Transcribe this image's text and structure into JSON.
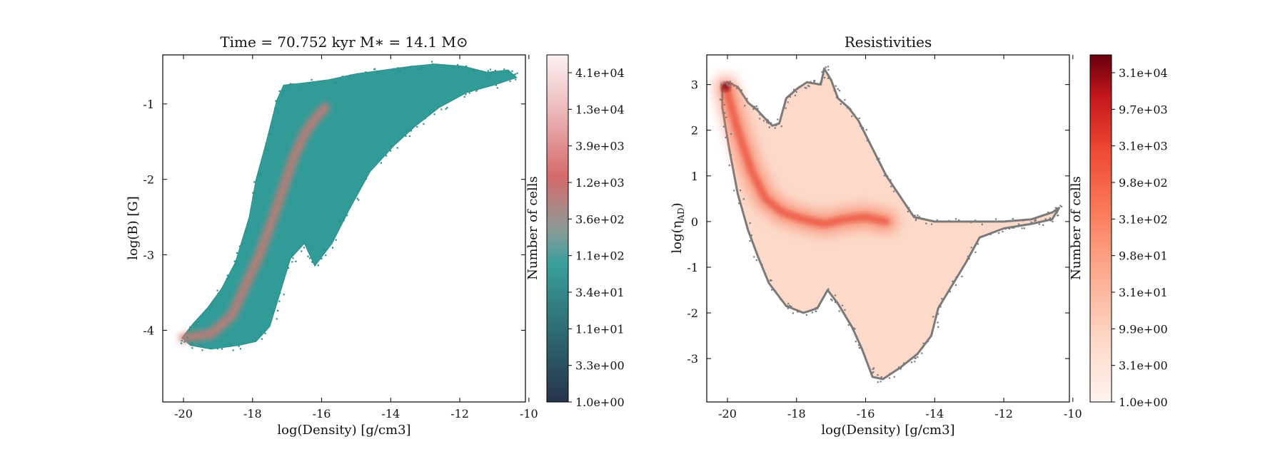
{
  "chart_data": [
    {
      "type": "heatmap",
      "title": "Time = 70.752 kyr    M$_*$ = 14.1 M$_\\odot$",
      "title_display": "Time = 70.752 kyr    M∗ = 14.1 M⊙",
      "xlabel": "log(Density) [g/cm3]",
      "ylabel": "log(B) [G]",
      "xlim": [
        -20.6,
        -10.1
      ],
      "ylim": [
        -4.95,
        -0.35
      ],
      "xticks": [
        -20,
        -18,
        -16,
        -14,
        -12,
        -10
      ],
      "yticks": [
        -4,
        -3,
        -2,
        -1
      ],
      "xtick_labels": [
        "-20",
        "-18",
        "-16",
        "-14",
        "-12",
        "-10"
      ],
      "ytick_labels": [
        "-4",
        "-3",
        "-2",
        "-1"
      ],
      "colormap": [
        "#2a3a52",
        "#2e8f8c",
        "#3aa3a0",
        "#8f9a96",
        "#d86868",
        "#f0bfc0",
        "#fbeff0"
      ],
      "colorbar": {
        "label": "Number of cells",
        "scale": "log",
        "ticks": [
          "1.0e+00",
          "3.3e+00",
          "1.1e+01",
          "3.4e+01",
          "1.1e+02",
          "3.6e+02",
          "1.2e+03",
          "3.9e+03",
          "1.3e+04",
          "4.1e+04"
        ]
      },
      "region": [
        [
          -20.05,
          -4.1
        ],
        [
          -19.7,
          -3.9
        ],
        [
          -19.3,
          -3.7
        ],
        [
          -18.9,
          -3.45
        ],
        [
          -18.5,
          -3.1
        ],
        [
          -18.1,
          -2.5
        ],
        [
          -17.9,
          -2.0
        ],
        [
          -17.6,
          -1.5
        ],
        [
          -17.3,
          -0.95
        ],
        [
          -17.1,
          -0.75
        ],
        [
          -16.5,
          -0.72
        ],
        [
          -15.8,
          -0.68
        ],
        [
          -15.0,
          -0.6
        ],
        [
          -14.2,
          -0.55
        ],
        [
          -13.4,
          -0.5
        ],
        [
          -12.7,
          -0.47
        ],
        [
          -11.9,
          -0.5
        ],
        [
          -11.2,
          -0.58
        ],
        [
          -10.6,
          -0.55
        ],
        [
          -10.35,
          -0.65
        ],
        [
          -11.0,
          -0.75
        ],
        [
          -11.8,
          -0.85
        ],
        [
          -12.6,
          -1.05
        ],
        [
          -13.3,
          -1.3
        ],
        [
          -13.9,
          -1.55
        ],
        [
          -14.6,
          -1.9
        ],
        [
          -15.2,
          -2.4
        ],
        [
          -15.7,
          -2.85
        ],
        [
          -16.2,
          -3.15
        ],
        [
          -16.5,
          -2.85
        ],
        [
          -16.9,
          -3.05
        ],
        [
          -17.2,
          -3.5
        ],
        [
          -17.5,
          -3.95
        ],
        [
          -17.9,
          -4.15
        ],
        [
          -18.4,
          -4.2
        ],
        [
          -19.2,
          -4.25
        ],
        [
          -19.8,
          -4.2
        ]
      ],
      "ridge": [
        [
          -20.0,
          -4.1
        ],
        [
          -19.2,
          -4.05
        ],
        [
          -18.6,
          -3.8
        ],
        [
          -18.2,
          -3.4
        ],
        [
          -17.8,
          -3.0
        ],
        [
          -17.4,
          -2.5
        ],
        [
          -17.1,
          -2.1
        ],
        [
          -16.8,
          -1.7
        ],
        [
          -16.5,
          -1.4
        ],
        [
          -16.2,
          -1.2
        ],
        [
          -15.9,
          -1.05
        ]
      ]
    },
    {
      "type": "heatmap",
      "title": "Resistivities",
      "xlabel": "log(Density) [g/cm3]",
      "ylabel": "log($\\eta_{\\rm AD}$)",
      "ylabel_display": "log(η",
      "ylabel_sub": "AD",
      "xlim": [
        -20.6,
        -10.1
      ],
      "ylim": [
        -3.95,
        3.65
      ],
      "xticks": [
        -20,
        -18,
        -16,
        -14,
        -12,
        -10
      ],
      "yticks": [
        -3,
        -2,
        -1,
        0,
        1,
        2,
        3
      ],
      "xtick_labels": [
        "-20",
        "-18",
        "-16",
        "-14",
        "-12",
        "-10"
      ],
      "ytick_labels": [
        "-3",
        "-2",
        "-1",
        "0",
        "1",
        "2",
        "3"
      ],
      "colormap": [
        "#fff5f0",
        "#fdd5c3",
        "#fcaa8e",
        "#fc8262",
        "#f1573f",
        "#d32121",
        "#a50f15",
        "#67000d"
      ],
      "contour_color": "#7a7a7a",
      "colorbar": {
        "label": "Number of cells",
        "scale": "log",
        "ticks": [
          "1.0e+00",
          "3.1e+00",
          "9.9e+00",
          "3.1e+01",
          "9.8e+01",
          "3.1e+02",
          "9.8e+02",
          "3.1e+03",
          "9.7e+03",
          "3.1e+04"
        ]
      },
      "region": [
        [
          -20.15,
          2.95
        ],
        [
          -20.0,
          3.05
        ],
        [
          -19.7,
          2.95
        ],
        [
          -19.4,
          2.6
        ],
        [
          -19.15,
          2.45
        ],
        [
          -18.9,
          2.25
        ],
        [
          -18.7,
          2.1
        ],
        [
          -18.5,
          2.15
        ],
        [
          -18.3,
          2.7
        ],
        [
          -18.0,
          2.9
        ],
        [
          -17.7,
          3.05
        ],
        [
          -17.3,
          3.0
        ],
        [
          -17.2,
          3.35
        ],
        [
          -17.0,
          3.1
        ],
        [
          -16.8,
          2.7
        ],
        [
          -16.5,
          2.5
        ],
        [
          -16.2,
          2.2
        ],
        [
          -15.8,
          1.6
        ],
        [
          -15.4,
          1.0
        ],
        [
          -15.0,
          0.55
        ],
        [
          -14.6,
          0.1
        ],
        [
          -14.0,
          0.0
        ],
        [
          -13.0,
          0.0
        ],
        [
          -12.0,
          0.0
        ],
        [
          -11.2,
          0.05
        ],
        [
          -10.6,
          0.2
        ],
        [
          -10.4,
          0.3
        ],
        [
          -10.6,
          0.05
        ],
        [
          -11.2,
          -0.05
        ],
        [
          -12.0,
          -0.15
        ],
        [
          -12.7,
          -0.35
        ],
        [
          -13.1,
          -0.9
        ],
        [
          -13.5,
          -1.4
        ],
        [
          -13.9,
          -1.9
        ],
        [
          -14.1,
          -2.5
        ],
        [
          -14.5,
          -2.9
        ],
        [
          -15.0,
          -3.2
        ],
        [
          -15.5,
          -3.45
        ],
        [
          -15.8,
          -3.4
        ],
        [
          -16.1,
          -2.8
        ],
        [
          -16.4,
          -2.3
        ],
        [
          -16.8,
          -1.8
        ],
        [
          -17.1,
          -1.5
        ],
        [
          -17.4,
          -1.9
        ],
        [
          -17.8,
          -2.0
        ],
        [
          -18.3,
          -1.85
        ],
        [
          -18.8,
          -1.35
        ],
        [
          -19.1,
          -0.8
        ],
        [
          -19.4,
          -0.2
        ],
        [
          -19.7,
          0.6
        ],
        [
          -19.95,
          1.6
        ],
        [
          -20.15,
          2.5
        ]
      ],
      "ridge": [
        [
          -20.05,
          2.95
        ],
        [
          -19.7,
          2.0
        ],
        [
          -19.3,
          1.1
        ],
        [
          -18.9,
          0.5
        ],
        [
          -18.4,
          0.2
        ],
        [
          -17.8,
          0.05
        ],
        [
          -17.2,
          -0.05
        ],
        [
          -16.6,
          0.05
        ],
        [
          -16.0,
          0.1
        ],
        [
          -15.4,
          0.0
        ]
      ]
    }
  ]
}
